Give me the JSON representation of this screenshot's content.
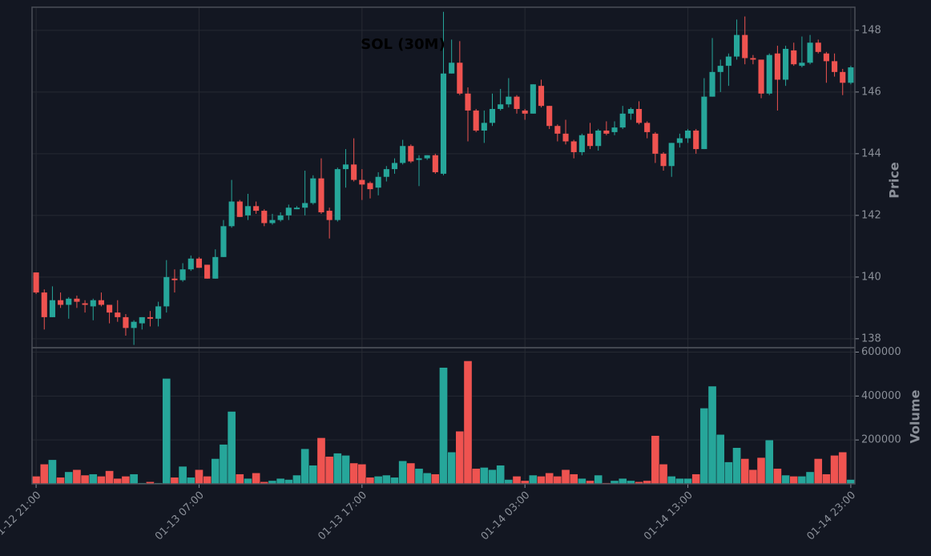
{
  "chart_data": [
    {
      "type": "candlestick",
      "title": "SOL (30M)",
      "y_label": "Price",
      "up_color": "#26a69a",
      "down_color": "#ef5350",
      "grid": true,
      "x": [
        "01-12 21:00",
        "01-12 21:30",
        "01-12 22:00",
        "01-12 22:30",
        "01-12 23:00",
        "01-12 23:30",
        "01-13 00:00",
        "01-13 00:30",
        "01-13 01:00",
        "01-13 01:30",
        "01-13 02:00",
        "01-13 02:30",
        "01-13 03:00",
        "01-13 03:30",
        "01-13 04:00",
        "01-13 04:30",
        "01-13 05:00",
        "01-13 05:30",
        "01-13 06:00",
        "01-13 06:30",
        "01-13 07:00",
        "01-13 07:30",
        "01-13 08:00",
        "01-13 08:30",
        "01-13 09:00",
        "01-13 09:30",
        "01-13 10:00",
        "01-13 10:30",
        "01-13 11:00",
        "01-13 11:30",
        "01-13 12:00",
        "01-13 12:30",
        "01-13 13:00",
        "01-13 13:30",
        "01-13 14:00",
        "01-13 14:30",
        "01-13 15:00",
        "01-13 15:30",
        "01-13 16:00",
        "01-13 16:30",
        "01-13 17:00",
        "01-13 17:30",
        "01-13 18:00",
        "01-13 18:30",
        "01-13 19:00",
        "01-13 19:30",
        "01-13 20:00",
        "01-13 20:30",
        "01-13 21:00",
        "01-13 21:30",
        "01-13 22:00",
        "01-13 22:30",
        "01-13 23:00",
        "01-13 23:30",
        "01-14 00:00",
        "01-14 00:30",
        "01-14 01:00",
        "01-14 01:30",
        "01-14 02:00",
        "01-14 02:30",
        "01-14 03:00",
        "01-14 03:30",
        "01-14 04:00",
        "01-14 04:30",
        "01-14 05:00",
        "01-14 05:30",
        "01-14 06:00",
        "01-14 06:30",
        "01-14 07:00",
        "01-14 07:30",
        "01-14 08:00",
        "01-14 08:30",
        "01-14 09:00",
        "01-14 09:30",
        "01-14 10:00",
        "01-14 10:30",
        "01-14 11:00",
        "01-14 11:30",
        "01-14 12:00",
        "01-14 12:30",
        "01-14 13:00",
        "01-14 13:30",
        "01-14 14:00",
        "01-14 14:30",
        "01-14 15:00",
        "01-14 15:30",
        "01-14 16:00",
        "01-14 16:30",
        "01-14 17:00",
        "01-14 17:30",
        "01-14 18:00",
        "01-14 18:30",
        "01-14 19:00",
        "01-14 19:30",
        "01-14 20:00",
        "01-14 20:30",
        "01-14 21:00",
        "01-14 21:30",
        "01-14 22:00",
        "01-14 22:30",
        "01-14 23:00"
      ],
      "open": [
        140.15,
        139.5,
        138.7,
        139.25,
        139.1,
        139.3,
        139.15,
        139.05,
        139.25,
        139.1,
        138.85,
        138.7,
        138.35,
        138.5,
        138.7,
        138.65,
        139.05,
        139.95,
        139.9,
        140.25,
        140.6,
        140.4,
        139.95,
        140.65,
        141.65,
        142.45,
        142.0,
        142.3,
        142.15,
        141.75,
        141.85,
        142.0,
        142.2,
        142.25,
        142.4,
        143.2,
        142.15,
        141.85,
        143.5,
        143.65,
        143.15,
        143.05,
        142.9,
        143.25,
        143.5,
        143.7,
        144.25,
        143.8,
        143.85,
        143.95,
        143.35,
        146.6,
        146.95,
        145.95,
        145.4,
        144.75,
        145.0,
        145.45,
        145.6,
        145.85,
        145.4,
        145.3,
        146.2,
        145.55,
        144.9,
        144.65,
        144.4,
        144.05,
        144.65,
        144.25,
        144.75,
        144.7,
        144.85,
        145.3,
        145.45,
        145.0,
        144.65,
        144.0,
        143.6,
        144.35,
        144.5,
        144.75,
        144.15,
        145.85,
        146.65,
        146.85,
        147.15,
        147.85,
        147.1,
        147.05,
        145.95,
        147.25,
        146.4,
        147.35,
        146.85,
        146.95,
        147.6,
        147.25,
        147.0,
        146.65,
        146.3
      ],
      "high": [
        140.15,
        139.6,
        139.7,
        139.5,
        139.35,
        139.4,
        139.25,
        139.3,
        139.5,
        139.1,
        139.25,
        138.8,
        138.6,
        138.7,
        138.9,
        139.2,
        140.55,
        140.25,
        140.45,
        140.7,
        140.65,
        140.4,
        140.9,
        141.85,
        143.15,
        142.5,
        142.7,
        142.45,
        142.2,
        142.05,
        142.1,
        142.35,
        142.3,
        143.45,
        143.3,
        143.85,
        142.25,
        143.55,
        144.15,
        144.5,
        143.5,
        143.1,
        143.4,
        143.6,
        143.85,
        144.45,
        144.3,
        143.95,
        143.95,
        144.0,
        148.6,
        147.7,
        147.65,
        146.15,
        145.45,
        145.4,
        145.95,
        146.1,
        146.45,
        145.9,
        145.45,
        146.25,
        146.4,
        145.55,
        144.95,
        145.1,
        144.45,
        144.65,
        145.0,
        144.8,
        145.05,
        145.05,
        145.55,
        145.5,
        145.7,
        145.05,
        144.7,
        144.05,
        144.35,
        144.65,
        144.8,
        144.8,
        146.45,
        147.75,
        147.05,
        147.25,
        148.35,
        148.45,
        147.2,
        147.05,
        147.25,
        147.5,
        147.5,
        147.6,
        147.8,
        147.85,
        147.7,
        147.3,
        147.25,
        146.75,
        146.85
      ],
      "low": [
        139.45,
        138.3,
        138.7,
        139.0,
        138.65,
        139.0,
        138.85,
        138.6,
        139.05,
        138.5,
        138.55,
        138.1,
        137.8,
        138.3,
        138.4,
        138.4,
        138.85,
        139.5,
        139.85,
        140.2,
        140.3,
        139.95,
        139.95,
        140.65,
        141.6,
        141.95,
        141.85,
        142.05,
        141.65,
        141.7,
        141.8,
        141.85,
        142.2,
        142.0,
        142.35,
        142.05,
        141.25,
        141.8,
        142.9,
        143.1,
        142.5,
        142.55,
        142.65,
        143.1,
        143.35,
        143.65,
        143.7,
        142.95,
        143.8,
        143.35,
        143.3,
        146.6,
        145.9,
        144.4,
        144.7,
        144.35,
        144.9,
        145.4,
        145.5,
        145.3,
        145.1,
        145.3,
        145.5,
        144.8,
        144.4,
        144.3,
        143.85,
        143.95,
        144.15,
        144.1,
        144.6,
        144.6,
        144.8,
        145.1,
        144.95,
        144.5,
        143.7,
        143.45,
        143.25,
        144.2,
        144.35,
        144.0,
        144.15,
        145.85,
        146.0,
        146.2,
        147.05,
        146.9,
        146.9,
        145.8,
        145.9,
        145.4,
        146.2,
        146.85,
        146.8,
        146.9,
        147.25,
        146.3,
        146.5,
        145.9,
        146.25
      ],
      "close": [
        139.5,
        138.7,
        139.25,
        139.1,
        139.3,
        139.2,
        139.1,
        139.25,
        139.1,
        138.85,
        138.7,
        138.35,
        138.55,
        138.7,
        138.65,
        139.05,
        140.0,
        139.9,
        140.25,
        140.6,
        140.3,
        139.95,
        140.65,
        141.65,
        142.45,
        141.95,
        142.3,
        142.15,
        141.75,
        141.85,
        142.0,
        142.25,
        142.25,
        142.4,
        143.2,
        142.1,
        141.85,
        143.5,
        143.65,
        143.15,
        143.0,
        142.85,
        143.25,
        143.5,
        143.7,
        144.25,
        143.75,
        143.85,
        143.95,
        143.4,
        146.6,
        146.95,
        145.95,
        145.4,
        144.75,
        145.0,
        145.45,
        145.6,
        145.85,
        145.45,
        145.3,
        146.25,
        145.55,
        144.9,
        144.65,
        144.4,
        144.05,
        144.6,
        144.25,
        144.75,
        144.65,
        144.85,
        145.3,
        145.45,
        145.0,
        144.7,
        144.0,
        143.6,
        144.35,
        144.5,
        144.75,
        144.15,
        145.85,
        146.65,
        146.85,
        147.15,
        147.85,
        147.1,
        147.05,
        145.95,
        147.2,
        146.4,
        147.4,
        146.9,
        146.95,
        147.6,
        147.3,
        147.0,
        146.65,
        146.3,
        146.8
      ],
      "ylim": [
        137.71,
        148.75
      ],
      "yticks": [
        138,
        140,
        142,
        144,
        146,
        148
      ]
    },
    {
      "type": "bar",
      "y_label": "Volume",
      "grid": true,
      "values": [
        35000,
        90000,
        110000,
        30000,
        55000,
        65000,
        40000,
        45000,
        35000,
        60000,
        25000,
        35000,
        45000,
        5000,
        10000,
        5000,
        480000,
        30000,
        80000,
        30000,
        65000,
        35000,
        115000,
        180000,
        330000,
        45000,
        25000,
        50000,
        10000,
        15000,
        25000,
        20000,
        40000,
        160000,
        85000,
        210000,
        125000,
        140000,
        130000,
        95000,
        90000,
        30000,
        35000,
        40000,
        30000,
        105000,
        95000,
        70000,
        50000,
        45000,
        530000,
        145000,
        240000,
        560000,
        70000,
        75000,
        65000,
        85000,
        20000,
        35000,
        15000,
        40000,
        35000,
        50000,
        35000,
        65000,
        45000,
        25000,
        15000,
        40000,
        5000,
        15000,
        25000,
        15000,
        10000,
        15000,
        220000,
        90000,
        35000,
        25000,
        25000,
        45000,
        345000,
        445000,
        225000,
        100000,
        165000,
        115000,
        65000,
        120000,
        200000,
        70000,
        40000,
        35000,
        35000,
        55000,
        115000,
        45000,
        130000,
        145000,
        20000
      ],
      "ylim": [
        0,
        620000
      ],
      "yticks": [
        200000,
        400000,
        600000
      ],
      "xticks": [
        "01-12 21:00",
        "01-13 07:00",
        "01-13 17:00",
        "01-14 03:00",
        "01-14 13:00",
        "01-14 23:00"
      ]
    }
  ]
}
